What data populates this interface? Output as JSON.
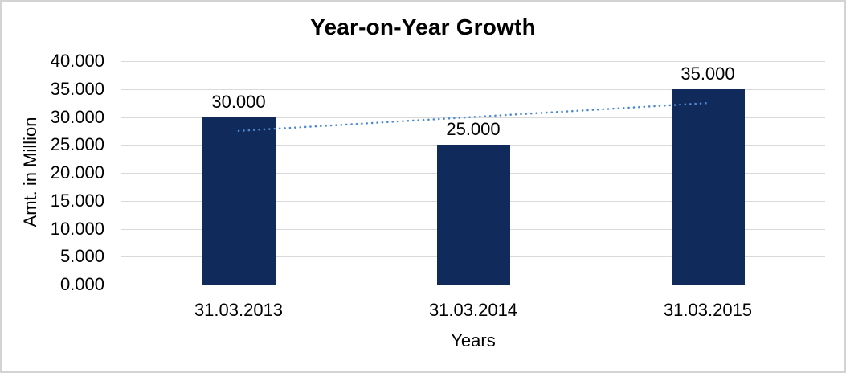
{
  "chart_data": {
    "type": "bar",
    "title": "Year-on-Year Growth",
    "categories": [
      "31.03.2013",
      "31.03.2014",
      "31.03.2015"
    ],
    "values": [
      30,
      25,
      35
    ],
    "data_labels": [
      "30.000",
      "25.000",
      "35.000"
    ],
    "xlabel": "Years",
    "ylabel": "Amt. in Million",
    "ylim": [
      0,
      40
    ],
    "y_tick_values": [
      0,
      5,
      10,
      15,
      20,
      25,
      30,
      35,
      40
    ],
    "y_tick_labels": [
      "0.000",
      "5.000",
      "10.000",
      "15.000",
      "20.000",
      "25.000",
      "30.000",
      "35.000",
      "40.000"
    ],
    "grid": true,
    "legend": "none",
    "trendline": {
      "type": "linear",
      "style": "dotted",
      "values": [
        27.5,
        30.0,
        32.5
      ]
    },
    "colors": {
      "bar": "#112a5c",
      "trendline": "#4e8ad4",
      "gridline": "#d9d9d9",
      "text": "#000000",
      "background": "#ffffff",
      "border": "#d3d3d3"
    }
  }
}
